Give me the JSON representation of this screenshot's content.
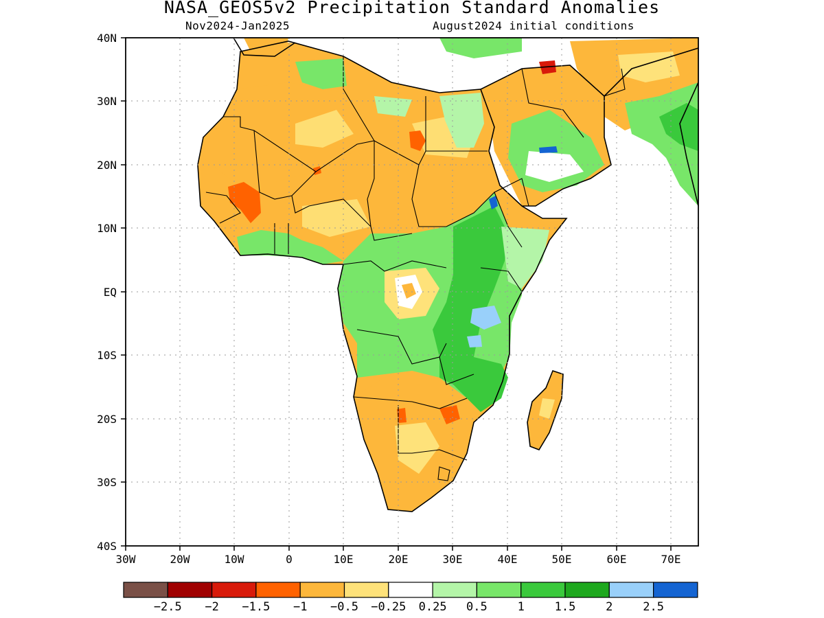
{
  "title": "NASA_GEOS5v2 Precipitation Standard Anomalies",
  "subtitle_left": "Nov2024-Jan2025",
  "subtitle_right": "August2024 initial conditions",
  "map": {
    "lat_labels": [
      "40N",
      "30N",
      "20N",
      "10N",
      "EQ",
      "10S",
      "20S",
      "30S",
      "40S"
    ],
    "lon_labels": [
      "30W",
      "20W",
      "10W",
      "0",
      "10E",
      "20E",
      "30E",
      "40E",
      "50E",
      "60E",
      "70E"
    ],
    "regions": [
      {
        "id": "sahara-west",
        "category": "dry-moderate"
      },
      {
        "id": "sahara-central",
        "category": "dry-moderate"
      },
      {
        "id": "sahel-west",
        "category": "dry-moderate"
      },
      {
        "id": "mali-core",
        "category": "dry-strong"
      },
      {
        "id": "libya-core",
        "category": "dry-strong"
      },
      {
        "id": "egypt-nile",
        "category": "wet-light"
      },
      {
        "id": "arabia-north",
        "category": "dry-moderate"
      },
      {
        "id": "iraq-core",
        "category": "dry-extreme"
      },
      {
        "id": "arabia-south",
        "category": "wet-moderate"
      },
      {
        "id": "iran-pakistan",
        "category": "dry-moderate"
      },
      {
        "id": "india-west",
        "category": "wet-moderate"
      },
      {
        "id": "gulf-guinea",
        "category": "wet-moderate"
      },
      {
        "id": "central-africa",
        "category": "wet-moderate"
      },
      {
        "id": "congo-core",
        "category": "dry-weak"
      },
      {
        "id": "east-africa",
        "category": "wet-strong"
      },
      {
        "id": "kenya-tanzania",
        "category": "wet-light"
      },
      {
        "id": "ethiopia-core",
        "category": "wet-extreme"
      },
      {
        "id": "zambia-mozambique",
        "category": "wet-strong"
      },
      {
        "id": "southern-africa",
        "category": "dry-moderate"
      },
      {
        "id": "zimbabwe-core",
        "category": "dry-strong"
      },
      {
        "id": "madagascar",
        "category": "dry-moderate"
      }
    ]
  },
  "colorbar": {
    "labels": [
      "-2.5",
      "-2",
      "-1.5",
      "-1",
      "-0.5",
      "-0.25",
      "0.25",
      "0.5",
      "1",
      "1.5",
      "2",
      "2.5"
    ],
    "colors": [
      "#7a5047",
      "#a00000",
      "#d81a0a",
      "#ff6200",
      "#fdb73b",
      "#fee27a",
      "#ffffff",
      "#b4f5a8",
      "#78e669",
      "#3ac93c",
      "#1ea81e",
      "#99d0fa",
      "#1464d2"
    ]
  }
}
